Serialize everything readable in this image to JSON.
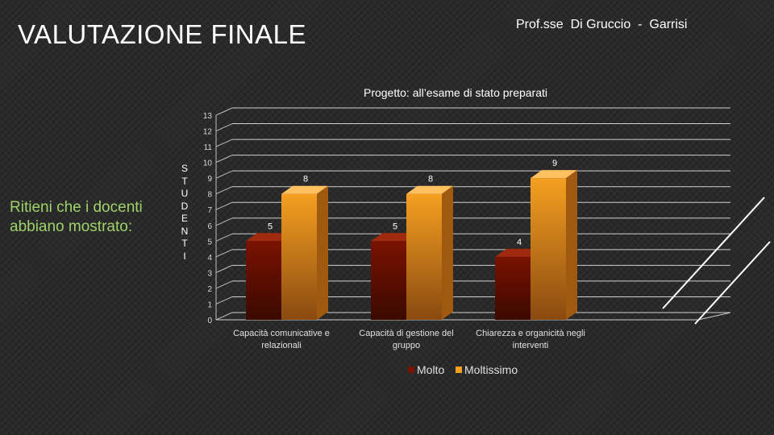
{
  "slide": {
    "title": "VALUTAZIONE FINALE",
    "authors": "Prof.sse  Di Gruccio  -  Garrisi",
    "question": "Ritieni che i docenti abbiano mostrato:",
    "vertical_label": "STUDENTI"
  },
  "colors": {
    "molto": "#7a1200",
    "moltissimo": "#f5a020",
    "question_text": "#9fd36a",
    "background": "#2a2a2a"
  },
  "chart_data": {
    "type": "bar",
    "title": "Progetto:  all’esame di stato preparati",
    "categories": [
      "Capacità comunicative e relazionali",
      "Capacità di gestione del gruppo",
      "Chiarezza e organicità negli interventi"
    ],
    "category_lines": [
      [
        "Capacità comunicative e",
        "relazionali"
      ],
      [
        "Capacità di gestione del",
        "gruppo"
      ],
      [
        "Chiarezza e organicità negli",
        "interventi"
      ]
    ],
    "series": [
      {
        "name": "Molto",
        "values": [
          5,
          5,
          4
        ]
      },
      {
        "name": "Moltissimo",
        "values": [
          8,
          8,
          9
        ]
      }
    ],
    "ylim": [
      0,
      13
    ],
    "yticks": [
      0,
      1,
      2,
      3,
      4,
      5,
      6,
      7,
      8,
      9,
      10,
      11,
      12,
      13
    ],
    "grid": true,
    "legend": "bottom"
  }
}
